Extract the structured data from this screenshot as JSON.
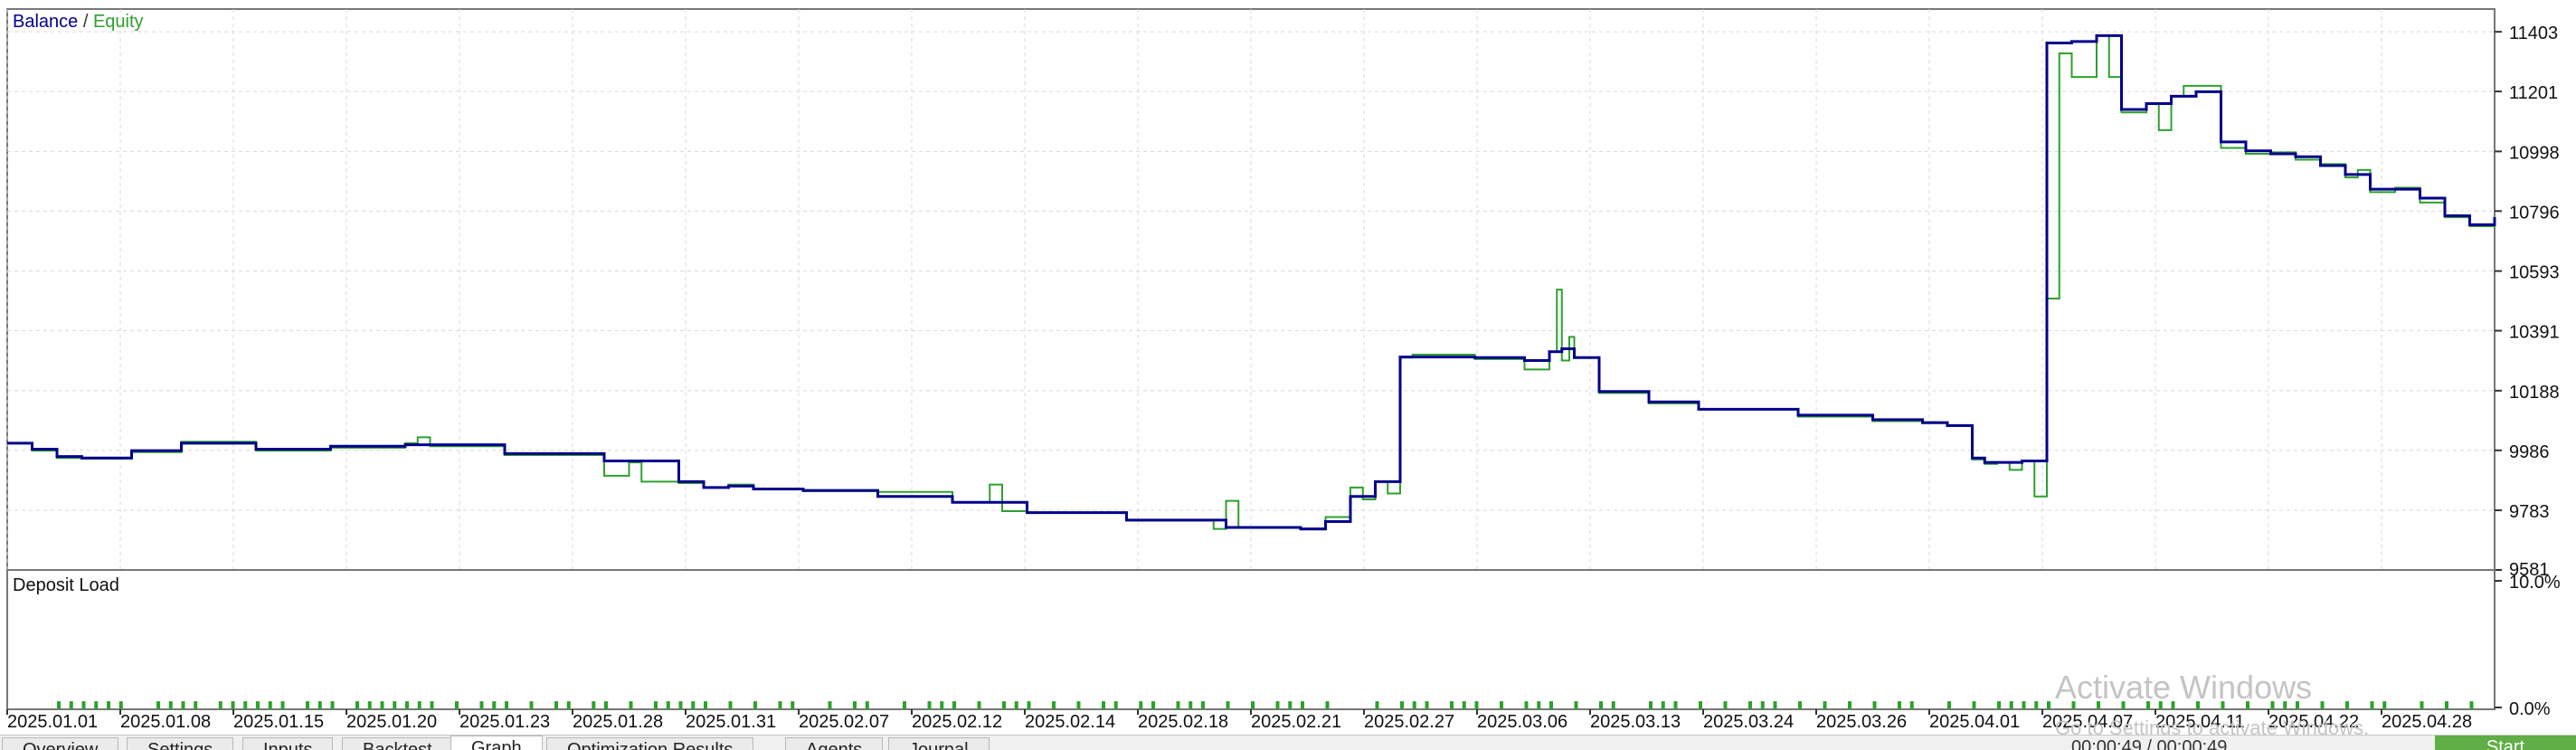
{
  "chart_data": [
    {
      "type": "line",
      "legend": {
        "items": [
          "Balance",
          "Equity"
        ],
        "separator": " / ",
        "placement": "top-left"
      },
      "y_ticks": [
        "11403",
        "11201",
        "10998",
        "10796",
        "10593",
        "10391",
        "10188",
        "9986",
        "9783",
        "9581"
      ],
      "ylim": [
        9581,
        11480
      ],
      "x_ticks": [
        "2025.01.01",
        "2025.01.08",
        "2025.01.15",
        "2025.01.20",
        "2025.01.23",
        "2025.01.28",
        "2025.01.31",
        "2025.02.07",
        "2025.02.12",
        "2025.02.14",
        "2025.02.18",
        "2025.02.21",
        "2025.02.27",
        "2025.03.06",
        "2025.03.13",
        "2025.03.24",
        "2025.03.26",
        "2025.04.01",
        "2025.04.07",
        "2025.04.11",
        "2025.04.22",
        "2025.04.28"
      ],
      "grid": true,
      "series": [
        {
          "name": "Balance",
          "color": "#00008b",
          "x": [
            0,
            0.01,
            0.02,
            0.03,
            0.05,
            0.07,
            0.1,
            0.13,
            0.16,
            0.2,
            0.24,
            0.27,
            0.28,
            0.29,
            0.3,
            0.32,
            0.35,
            0.38,
            0.41,
            0.45,
            0.49,
            0.52,
            0.53,
            0.54,
            0.55,
            0.555,
            0.56,
            0.59,
            0.61,
            0.62,
            0.625,
            0.63,
            0.64,
            0.66,
            0.68,
            0.72,
            0.75,
            0.77,
            0.78,
            0.79,
            0.795,
            0.8,
            0.81,
            0.82,
            0.83,
            0.84,
            0.85,
            0.86,
            0.87,
            0.88,
            0.89,
            0.9,
            0.91,
            0.92,
            0.93,
            0.94,
            0.945,
            0.95,
            0.96,
            0.97,
            0.98,
            0.99,
            1.0
          ],
          "y": [
            10010,
            9990,
            9965,
            9960,
            9985,
            10010,
            9990,
            10000,
            10005,
            9975,
            9950,
            9880,
            9860,
            9865,
            9855,
            9850,
            9830,
            9810,
            9775,
            9750,
            9725,
            9720,
            9745,
            9830,
            9880,
            9880,
            10302,
            10300,
            10290,
            10320,
            10330,
            10300,
            10185,
            10150,
            10125,
            10105,
            10090,
            10080,
            10070,
            9960,
            9945,
            9945,
            9950,
            11365,
            11370,
            11390,
            11140,
            11160,
            11185,
            11200,
            11030,
            11000,
            10990,
            10980,
            10950,
            10920,
            10920,
            10870,
            10870,
            10840,
            10780,
            10750,
            10775
          ]
        },
        {
          "name": "Equity",
          "color": "#2ea02e",
          "x": [
            0,
            0.01,
            0.02,
            0.03,
            0.05,
            0.07,
            0.1,
            0.13,
            0.16,
            0.165,
            0.17,
            0.2,
            0.24,
            0.25,
            0.255,
            0.27,
            0.28,
            0.29,
            0.3,
            0.32,
            0.35,
            0.38,
            0.395,
            0.4,
            0.41,
            0.45,
            0.485,
            0.49,
            0.495,
            0.52,
            0.53,
            0.54,
            0.545,
            0.55,
            0.555,
            0.56,
            0.565,
            0.59,
            0.61,
            0.62,
            0.623,
            0.625,
            0.628,
            0.63,
            0.64,
            0.66,
            0.68,
            0.72,
            0.75,
            0.77,
            0.78,
            0.79,
            0.795,
            0.8,
            0.805,
            0.81,
            0.815,
            0.82,
            0.825,
            0.83,
            0.84,
            0.845,
            0.85,
            0.86,
            0.865,
            0.87,
            0.875,
            0.88,
            0.89,
            0.9,
            0.91,
            0.92,
            0.93,
            0.94,
            0.945,
            0.95,
            0.96,
            0.97,
            0.98,
            0.99,
            1.0
          ],
          "y": [
            10010,
            9985,
            9960,
            9958,
            9980,
            10015,
            9985,
            9995,
            10010,
            10030,
            10000,
            9970,
            9900,
            9945,
            9880,
            9875,
            9860,
            9870,
            9855,
            9848,
            9845,
            9810,
            9870,
            9780,
            9775,
            9748,
            9720,
            9815,
            9725,
            9718,
            9760,
            9860,
            9820,
            9880,
            9840,
            10300,
            10310,
            10295,
            10260,
            10320,
            10530,
            10290,
            10370,
            10300,
            10180,
            10145,
            10125,
            10100,
            10085,
            10078,
            10068,
            9955,
            9940,
            9945,
            9920,
            9950,
            9830,
            10500,
            11330,
            11250,
            11390,
            11250,
            11130,
            11160,
            11070,
            11185,
            11220,
            11220,
            11010,
            10990,
            10995,
            10970,
            10955,
            10910,
            10935,
            10860,
            10875,
            10825,
            10775,
            10745,
            10780
          ]
        }
      ]
    },
    {
      "type": "bar",
      "title": "Deposit Load",
      "y_ticks": [
        "10.0%",
        "0.0%"
      ],
      "ylim": [
        0,
        10
      ],
      "color": "#2ea02e",
      "bar_positions": [
        0.02,
        0.025,
        0.03,
        0.035,
        0.04,
        0.045,
        0.06,
        0.065,
        0.07,
        0.075,
        0.085,
        0.09,
        0.095,
        0.1,
        0.105,
        0.11,
        0.12,
        0.125,
        0.13,
        0.14,
        0.145,
        0.15,
        0.155,
        0.16,
        0.165,
        0.17,
        0.18,
        0.19,
        0.195,
        0.2,
        0.21,
        0.22,
        0.225,
        0.235,
        0.24,
        0.25,
        0.26,
        0.265,
        0.27,
        0.275,
        0.28,
        0.29,
        0.3,
        0.31,
        0.315,
        0.33,
        0.34,
        0.345,
        0.36,
        0.37,
        0.375,
        0.38,
        0.39,
        0.4,
        0.405,
        0.41,
        0.42,
        0.43,
        0.44,
        0.445,
        0.455,
        0.46,
        0.47,
        0.475,
        0.48,
        0.49,
        0.5,
        0.51,
        0.515,
        0.52,
        0.53,
        0.55,
        0.56,
        0.565,
        0.57,
        0.58,
        0.585,
        0.59,
        0.6,
        0.61,
        0.615,
        0.62,
        0.63,
        0.64,
        0.645,
        0.66,
        0.665,
        0.67,
        0.68,
        0.69,
        0.7,
        0.705,
        0.71,
        0.72,
        0.73,
        0.74,
        0.75,
        0.76,
        0.765,
        0.78,
        0.79,
        0.8,
        0.805,
        0.81,
        0.815,
        0.82,
        0.83,
        0.84,
        0.85,
        0.86,
        0.865,
        0.87,
        0.88,
        0.89,
        0.9,
        0.91,
        0.915,
        0.92,
        0.93,
        0.94,
        0.95,
        0.955,
        0.97,
        0.98,
        0.99
      ],
      "bar_values": [
        0.6,
        0.6,
        0.6,
        0.6,
        0.6,
        0.6,
        0.6,
        0.6,
        0.6,
        0.6,
        0.6,
        0.6,
        0.6,
        0.6,
        0.6,
        0.6,
        0.6,
        0.6,
        0.6,
        0.6,
        0.6,
        0.6,
        0.6,
        0.6,
        0.6,
        0.6,
        0.6,
        0.6,
        0.6,
        0.6,
        0.6,
        0.6,
        0.6,
        0.6,
        0.6,
        0.6,
        0.6,
        0.6,
        0.6,
        0.6,
        0.6,
        0.6,
        0.6,
        0.6,
        0.6,
        0.6,
        0.6,
        0.6,
        0.6,
        0.6,
        0.6,
        0.6,
        0.6,
        0.6,
        0.6,
        0.6,
        0.6,
        0.6,
        0.6,
        0.6,
        0.6,
        0.6,
        0.6,
        0.6,
        0.6,
        0.6,
        0.6,
        0.6,
        0.6,
        0.6,
        0.6,
        0.6,
        0.6,
        0.6,
        0.6,
        0.6,
        0.6,
        0.6,
        0.6,
        0.6,
        0.6,
        0.6,
        0.6,
        0.6,
        0.6,
        0.6,
        0.6,
        0.6,
        0.6,
        0.6,
        0.6,
        0.6,
        0.6,
        0.6,
        0.6,
        0.6,
        0.6,
        0.6,
        0.6,
        0.6,
        0.6,
        0.6,
        0.6,
        0.6,
        0.6,
        0.6,
        0.6,
        0.6,
        0.6,
        0.6,
        0.6,
        0.6,
        0.6,
        0.6,
        0.6,
        0.6,
        0.6,
        0.6,
        0.6,
        0.6,
        0.6,
        0.6,
        0.6,
        0.6,
        0.6
      ]
    }
  ],
  "overlay": {
    "watermark_title": "Activate Windows",
    "watermark_subtitle": "Go to Settings to activate Windows."
  },
  "tabs": [
    {
      "label": "Overview",
      "active": false
    },
    {
      "label": "Settings",
      "active": false
    },
    {
      "label": "Inputs",
      "active": false
    },
    {
      "label": "Backtest",
      "active": false
    },
    {
      "label": "Graph",
      "active": true
    },
    {
      "label": "Optimization Results",
      "active": false
    },
    {
      "label": "Agents",
      "active": false
    },
    {
      "label": "Journal",
      "active": false
    }
  ],
  "status": {
    "time": "00:00:49 / 00:00:49"
  },
  "start_button": {
    "label": "Start"
  }
}
